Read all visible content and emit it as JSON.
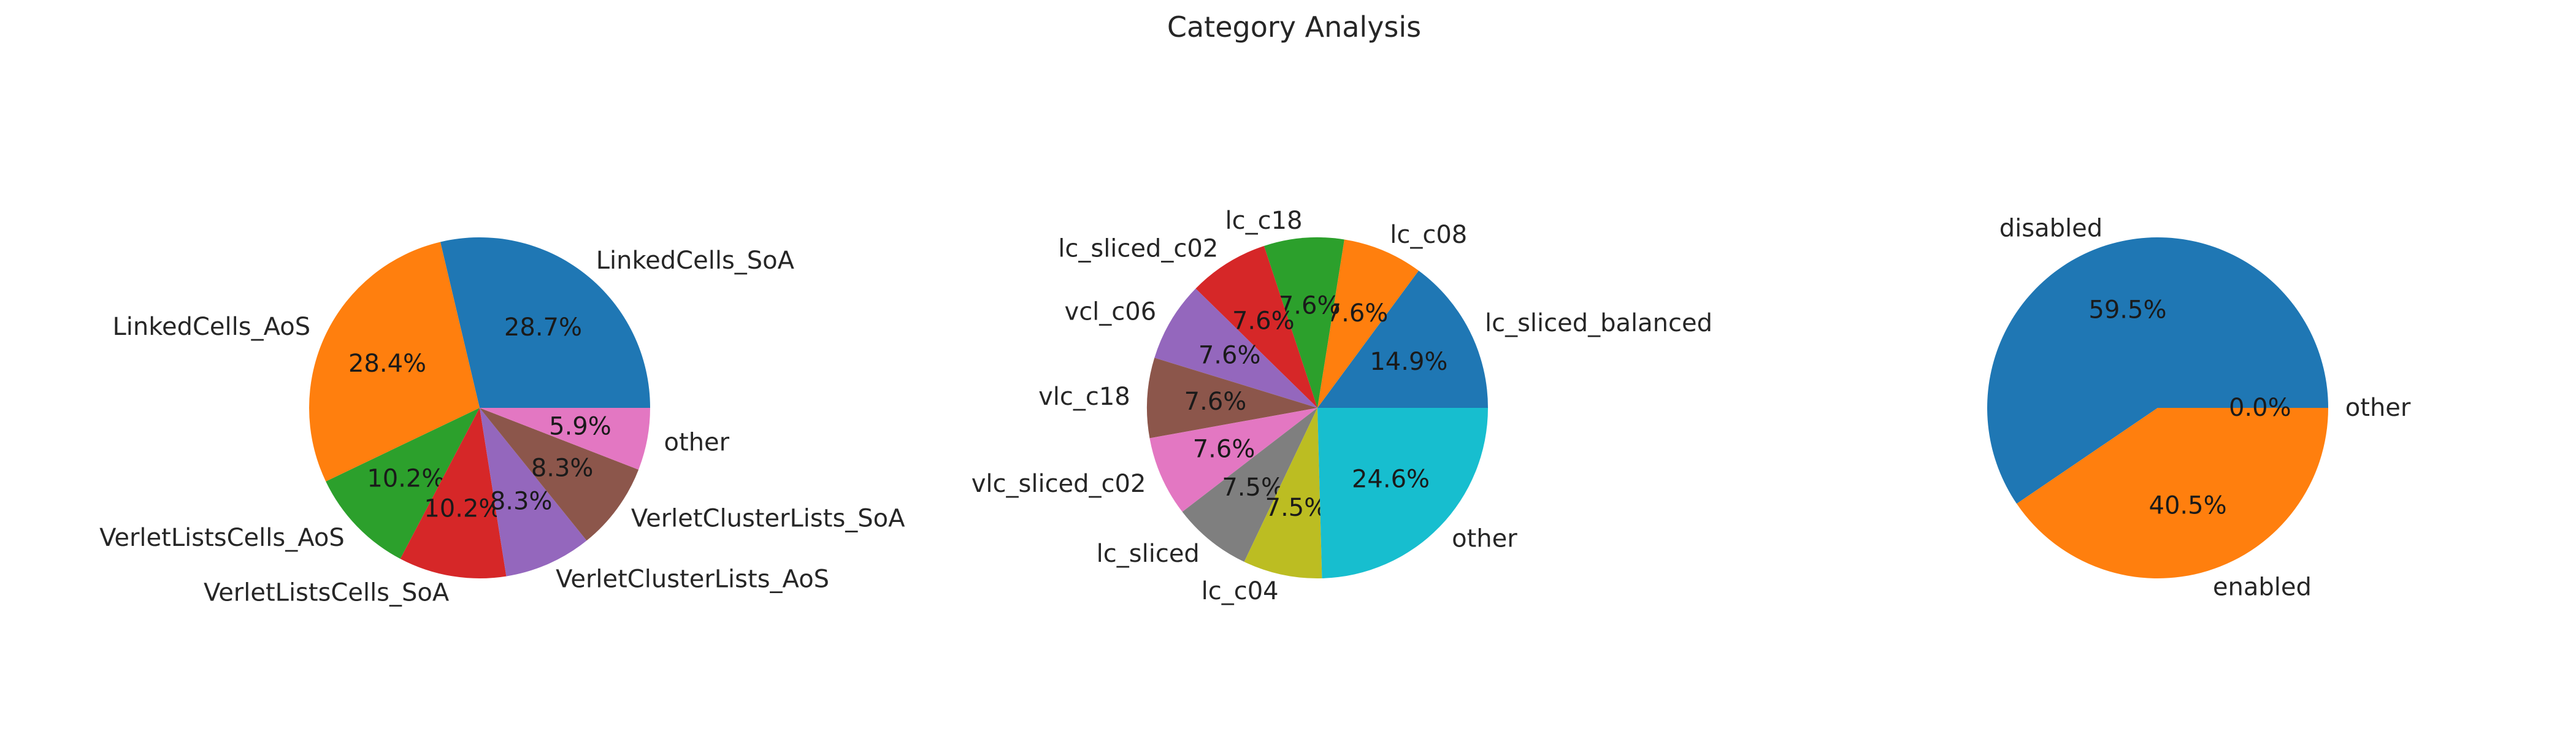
{
  "title": "Category Analysis",
  "chart_data": [
    {
      "type": "pie",
      "title": "",
      "start_angle_deg": 0,
      "direction": "counterclockwise",
      "slices": [
        {
          "label": "LinkedCells_SoA",
          "value": 28.7,
          "pct_text": "28.7%",
          "color": "#1f77b4"
        },
        {
          "label": "LinkedCells_AoS",
          "value": 28.4,
          "pct_text": "28.4%",
          "color": "#ff7f0e"
        },
        {
          "label": "VerletListsCells_AoS",
          "value": 10.2,
          "pct_text": "10.2%",
          "color": "#2ca02c"
        },
        {
          "label": "VerletListsCells_SoA",
          "value": 10.2,
          "pct_text": "10.2%",
          "color": "#d62728"
        },
        {
          "label": "VerletClusterLists_AoS",
          "value": 8.3,
          "pct_text": "8.3%",
          "color": "#9467bd"
        },
        {
          "label": "VerletClusterLists_SoA",
          "value": 8.3,
          "pct_text": "8.3%",
          "color": "#8c564b"
        },
        {
          "label": "other",
          "value": 5.9,
          "pct_text": "5.9%",
          "color": "#e377c2"
        }
      ]
    },
    {
      "type": "pie",
      "title": "",
      "start_angle_deg": 0,
      "direction": "counterclockwise",
      "slices": [
        {
          "label": "lc_sliced_balanced",
          "value": 14.9,
          "pct_text": "14.9%",
          "color": "#1f77b4"
        },
        {
          "label": "lc_c08",
          "value": 7.6,
          "pct_text": "7.6%",
          "color": "#ff7f0e"
        },
        {
          "label": "lc_c18",
          "value": 7.6,
          "pct_text": "7.6%",
          "color": "#2ca02c"
        },
        {
          "label": "lc_sliced_c02",
          "value": 7.6,
          "pct_text": "7.6%",
          "color": "#d62728"
        },
        {
          "label": "vcl_c06",
          "value": 7.6,
          "pct_text": "7.6%",
          "color": "#9467bd"
        },
        {
          "label": "vlc_c18",
          "value": 7.6,
          "pct_text": "7.6%",
          "color": "#8c564b"
        },
        {
          "label": "vlc_sliced_c02",
          "value": 7.6,
          "pct_text": "7.6%",
          "color": "#e377c2"
        },
        {
          "label": "lc_sliced",
          "value": 7.5,
          "pct_text": "7.5%",
          "color": "#7f7f7f"
        },
        {
          "label": "lc_c04",
          "value": 7.5,
          "pct_text": "7.5%",
          "color": "#bcbd22"
        },
        {
          "label": "other",
          "value": 24.6,
          "pct_text": "24.6%",
          "color": "#17becf"
        }
      ]
    },
    {
      "type": "pie",
      "title": "",
      "start_angle_deg": 0,
      "direction": "counterclockwise",
      "slices": [
        {
          "label": "disabled",
          "value": 59.5,
          "pct_text": "59.5%",
          "color": "#1f77b4"
        },
        {
          "label": "enabled",
          "value": 40.5,
          "pct_text": "40.5%",
          "color": "#ff7f0e"
        },
        {
          "label": "other",
          "value": 0.0,
          "pct_text": "0.0%",
          "color": "#2ca02c"
        }
      ]
    }
  ]
}
